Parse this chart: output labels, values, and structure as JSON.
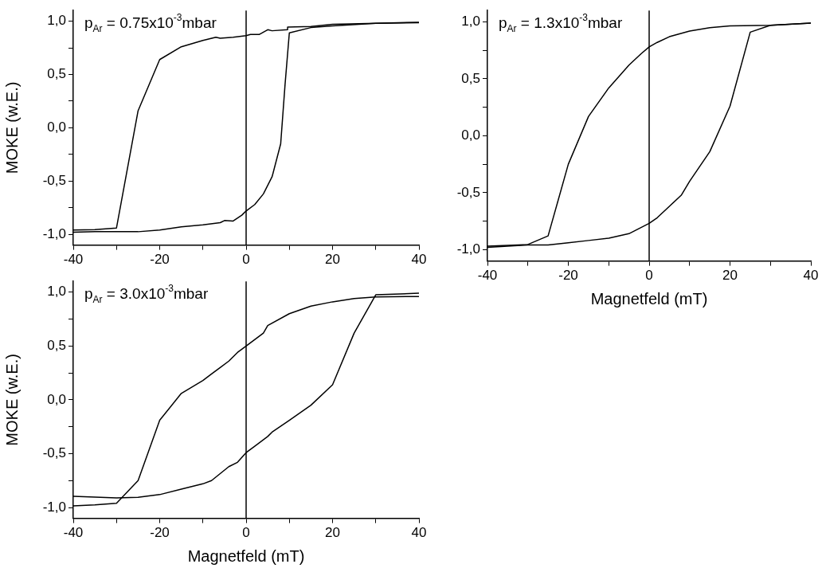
{
  "chart_data": [
    {
      "type": "line",
      "ylabel": "MOKE (w.E.)",
      "annotations": [
        "p$_{Ar}$ = 0.75x10$^{-3}$mbar"
      ],
      "xlim": [
        -40,
        40
      ],
      "xticks": [
        -40,
        {
          "value": -30,
          "label": null
        },
        -20,
        {
          "value": -10,
          "label": null
        },
        0,
        {
          "value": 10,
          "label": null
        },
        20,
        {
          "value": 30,
          "label": null
        },
        40
      ],
      "ylim": [
        -1.1,
        1.1
      ],
      "yticks": [
        {
          "value": -1,
          "label": "-1,0"
        },
        {
          "value": -0.75,
          "label": null
        },
        {
          "value": -0.5,
          "label": "-0,5"
        },
        {
          "value": -0.25,
          "label": null
        },
        {
          "value": 0,
          "label": "0,0"
        },
        {
          "value": 0.25,
          "label": null
        },
        {
          "value": 0.5,
          "label": "0,5"
        },
        {
          "value": 0.75,
          "label": null
        },
        {
          "value": 1,
          "label": "1,0"
        }
      ],
      "ref_lines": [
        {
          "axis": "x",
          "value": 0,
          "color": "#000000"
        }
      ],
      "series": [
        {
          "color": "#000000",
          "x": [
            40,
            30,
            20,
            15,
            9.6,
            9.6,
            6,
            5,
            3,
            1,
            0,
            -3,
            -6,
            -7,
            -10,
            -15,
            -20,
            -25,
            -30,
            -35,
            -40
          ],
          "values": [
            0.99,
            0.98,
            0.97,
            0.95,
            0.945,
            0.92,
            0.91,
            0.92,
            0.875,
            0.875,
            0.865,
            0.85,
            0.84,
            0.85,
            0.82,
            0.76,
            0.64,
            0.16,
            -0.94,
            -0.955,
            -0.96
          ]
        },
        {
          "color": "#000000",
          "x": [
            -40,
            -35,
            -30,
            -25,
            -20,
            -15,
            -10,
            -6,
            -5,
            -3,
            -1,
            0,
            2,
            4,
            6,
            6.2,
            8,
            9,
            10,
            15,
            20,
            30,
            40
          ],
          "values": [
            -0.98,
            -0.975,
            -0.975,
            -0.975,
            -0.96,
            -0.93,
            -0.91,
            -0.89,
            -0.87,
            -0.875,
            -0.82,
            -0.78,
            -0.72,
            -0.62,
            -0.46,
            -0.43,
            -0.15,
            0.4,
            0.89,
            0.94,
            0.955,
            0.98,
            0.985
          ]
        }
      ]
    },
    {
      "type": "line",
      "xlabel": "Magnetfeld (mT)",
      "annotations": [
        "p$_{Ar}$ = 1.3x10$^{-3}$mbar"
      ],
      "xlim": [
        -40,
        40
      ],
      "xticks": [
        -40,
        {
          "value": -30,
          "label": null
        },
        -20,
        {
          "value": -10,
          "label": null
        },
        0,
        {
          "value": 10,
          "label": null
        },
        20,
        {
          "value": 30,
          "label": null
        },
        40
      ],
      "ylim": [
        -1.1,
        1.1
      ],
      "yticks": [
        {
          "value": -1,
          "label": "-1,0"
        },
        {
          "value": -0.75,
          "label": null
        },
        {
          "value": -0.5,
          "label": "-0,5"
        },
        {
          "value": -0.25,
          "label": null
        },
        {
          "value": 0,
          "label": "0,0"
        },
        {
          "value": 0.25,
          "label": null
        },
        {
          "value": 0.5,
          "label": "0,5"
        },
        {
          "value": 0.75,
          "label": null
        },
        {
          "value": 1,
          "label": "1,0"
        }
      ],
      "ref_lines": [
        {
          "axis": "x",
          "value": 0,
          "color": "#000000"
        }
      ],
      "series": [
        {
          "color": "#000000",
          "x": [
            40,
            30,
            20,
            15,
            10,
            5,
            2,
            0,
            -2,
            -5,
            -10,
            -15,
            -20,
            -25,
            -30,
            -40
          ],
          "values": [
            0.99,
            0.97,
            0.965,
            0.95,
            0.92,
            0.87,
            0.82,
            0.78,
            0.72,
            0.62,
            0.42,
            0.17,
            -0.25,
            -0.88,
            -0.955,
            -0.97
          ]
        },
        {
          "color": "#000000",
          "x": [
            -40,
            -30,
            -25,
            -20,
            -15,
            -10,
            -5,
            0,
            2,
            5,
            8,
            10,
            15,
            20,
            25,
            30,
            40
          ],
          "values": [
            -0.98,
            -0.96,
            -0.96,
            -0.94,
            -0.92,
            -0.9,
            -0.86,
            -0.77,
            -0.72,
            -0.62,
            -0.52,
            -0.4,
            -0.14,
            0.26,
            0.91,
            0.97,
            0.99
          ]
        }
      ]
    },
    {
      "type": "line",
      "xlabel": "Magnetfeld (mT)",
      "ylabel": "MOKE (w.E.)",
      "annotations": [
        "p$_{Ar}$ = 3.0x10$^{-3}$mbar"
      ],
      "xlim": [
        -40,
        40
      ],
      "xticks": [
        -40,
        {
          "value": -30,
          "label": null
        },
        -20,
        {
          "value": -10,
          "label": null
        },
        0,
        {
          "value": 10,
          "label": null
        },
        20,
        {
          "value": 30,
          "label": null
        },
        40
      ],
      "ylim": [
        -1.1,
        1.1
      ],
      "yticks": [
        {
          "value": -1,
          "label": "-1,0"
        },
        {
          "value": -0.75,
          "label": null
        },
        {
          "value": -0.5,
          "label": "-0,5"
        },
        {
          "value": -0.25,
          "label": null
        },
        {
          "value": 0,
          "label": "0,0"
        },
        {
          "value": 0.25,
          "label": null
        },
        {
          "value": 0.5,
          "label": "0,5"
        },
        {
          "value": 0.75,
          "label": null
        },
        {
          "value": 1,
          "label": "1,0"
        }
      ],
      "ref_lines": [
        {
          "axis": "x",
          "value": 0,
          "color": "#000000"
        }
      ],
      "series": [
        {
          "color": "#000000",
          "x": [
            40,
            30,
            25,
            20,
            15,
            10,
            5,
            4,
            0,
            -2,
            -4,
            -6,
            -8,
            -10,
            -15,
            -20,
            -25,
            -30,
            -35,
            -40
          ],
          "values": [
            0.96,
            0.955,
            0.94,
            0.91,
            0.87,
            0.8,
            0.69,
            0.62,
            0.5,
            0.44,
            0.36,
            0.3,
            0.24,
            0.18,
            0.06,
            -0.19,
            -0.75,
            -0.96,
            -0.975,
            -0.985
          ]
        },
        {
          "color": "#000000",
          "x": [
            -40,
            -30,
            -25,
            -20,
            -15,
            -10,
            -8,
            -4,
            -2,
            0,
            2,
            5,
            6,
            10,
            15,
            20,
            25,
            30,
            40
          ],
          "values": [
            -0.895,
            -0.91,
            -0.905,
            -0.88,
            -0.83,
            -0.78,
            -0.75,
            -0.62,
            -0.58,
            -0.49,
            -0.43,
            -0.34,
            -0.3,
            -0.19,
            -0.05,
            0.14,
            0.62,
            0.975,
            0.99
          ]
        }
      ]
    }
  ]
}
